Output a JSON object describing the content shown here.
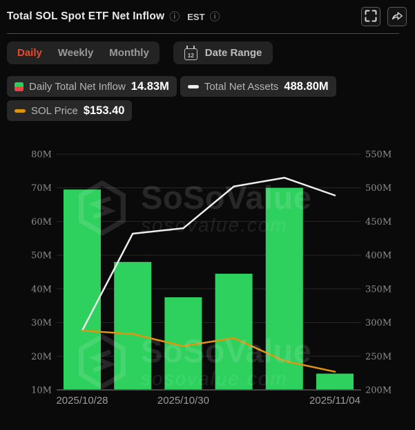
{
  "header": {
    "title": "Total SOL Spot ETF Net Inflow",
    "timezone_label": "EST"
  },
  "icons": {
    "info_glyph": "ⓘ",
    "fullscreen": "fullscreen-expand",
    "share": "share-arrow",
    "calendar": "calendar"
  },
  "toolbar": {
    "tabs": [
      {
        "label": "Daily",
        "active": true
      },
      {
        "label": "Weekly",
        "active": false
      },
      {
        "label": "Monthly",
        "active": false
      }
    ],
    "date_range_label": "Date Range",
    "calendar_day": "12"
  },
  "legend": {
    "items": [
      {
        "label": "Daily Total Net Inflow",
        "value": "14.83M",
        "icon": "green-red-split-square"
      },
      {
        "label": "Total Net Assets",
        "value": "488.80M",
        "icon": "white-dash"
      },
      {
        "label": "SOL Price",
        "value": "$153.40",
        "icon": "orange-dash"
      }
    ]
  },
  "watermark": {
    "brand": "SoSoValue",
    "domain": "sosovalue.com"
  },
  "colors": {
    "background": "#0a0a0a",
    "bar_green": "#2ed05e",
    "legend_red": "#ef4444",
    "assets_line": "#ededed",
    "price_line": "#e0940f",
    "tab_active": "#e64b2d"
  },
  "chart_data": {
    "type": "combo",
    "x_count": 6,
    "x_tick_labels": [
      {
        "index": 0,
        "label": "2025/10/28"
      },
      {
        "index": 2,
        "label": "2025/10/30"
      },
      {
        "index": 5,
        "label": "2025/11/04"
      }
    ],
    "left_axis": {
      "min": 10,
      "max": 80,
      "tick_step": 10,
      "tick_labels": [
        "80M",
        "70M",
        "60M",
        "50M",
        "40M",
        "30M",
        "20M",
        "10M"
      ]
    },
    "right_axis": {
      "min": 200,
      "max": 550,
      "tick_step": 50,
      "tick_labels": [
        "550M",
        "500M",
        "450M",
        "400M",
        "350M",
        "300M",
        "250M",
        "200M"
      ]
    },
    "series": [
      {
        "name": "Daily Total Net Inflow",
        "type": "bar",
        "axis": "left",
        "color": "#2ed05e",
        "values": [
          69.5,
          48,
          37.5,
          44.5,
          70,
          14.83
        ]
      },
      {
        "name": "Total Net Assets",
        "type": "line",
        "axis": "right",
        "color": "#ededed",
        "values": [
          288,
          432,
          440,
          502,
          515,
          488.8
        ]
      },
      {
        "name": "SOL Price",
        "type": "line",
        "axis": "right-equivalent",
        "color": "#e0940f",
        "values": [
          288,
          283,
          265,
          277,
          243,
          227
        ]
      }
    ]
  }
}
